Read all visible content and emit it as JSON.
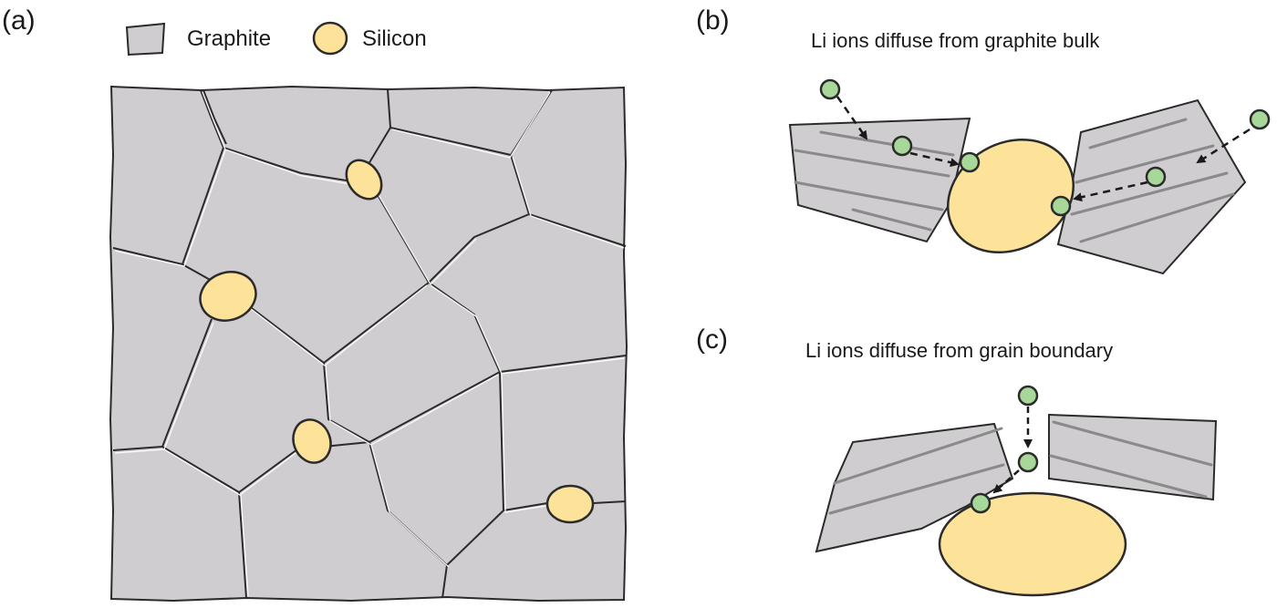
{
  "panels": {
    "a": {
      "label": "(a)"
    },
    "b": {
      "label": "(b)",
      "caption": "Li ions diffuse from graphite bulk"
    },
    "c": {
      "label": "(c)",
      "caption": "Li ions diffuse from grain boundary"
    }
  },
  "legend": {
    "graphite": "Graphite",
    "silicon": "Silicon"
  },
  "colors": {
    "graphite_fill": "#cfcdcf",
    "silicon_fill": "#fde29a",
    "li_ion_fill": "#a8d79a",
    "outline": "#2b2b2b",
    "stripe": "#8a8a8a"
  },
  "icons": [
    "graphite-grain-icon",
    "silicon-particle-icon",
    "li-ion-icon",
    "diffusion-arrow-icon"
  ]
}
